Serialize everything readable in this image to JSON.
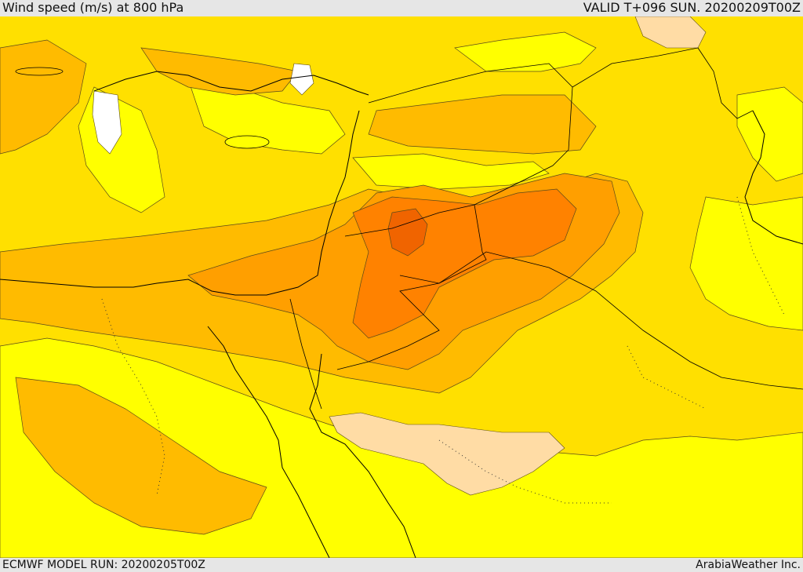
{
  "header": {
    "title": "Wind speed (m/s) at 800 hPa",
    "valid": "VALID T+096 SUN. 20200209T00Z"
  },
  "footer": {
    "model_run": "ECMWF MODEL RUN: 20200205T00Z",
    "credit": "ArabiaWeather Inc."
  },
  "colors": {
    "level_low": "#ffff00",
    "level_2": "#ffe000",
    "level_3": "#ffbb00",
    "level_4": "#ff9f00",
    "level_5": "#ff8200",
    "level_6": "#f06400",
    "calm": "#ffffff",
    "pale": "#ffdca5",
    "coastline": "#000000",
    "contour": "#5a4a1a"
  }
}
